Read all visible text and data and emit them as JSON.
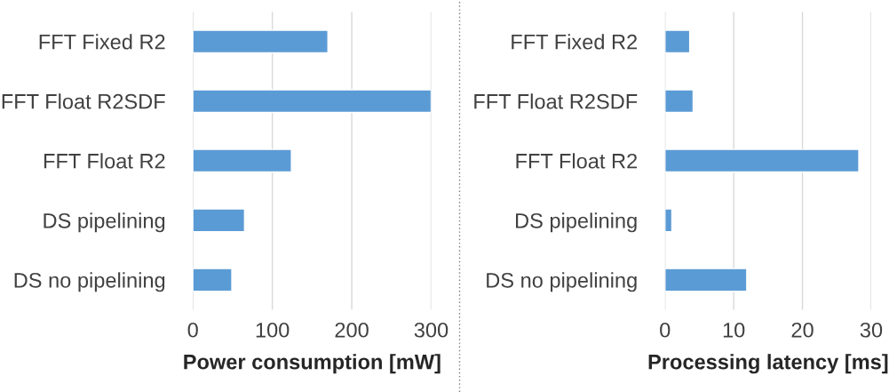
{
  "chart_data": [
    {
      "type": "bar",
      "orientation": "horizontal",
      "categories": [
        "FFT Fixed R2",
        "FFT Float R2SDF",
        "FFT Float R2",
        "DS pipelining",
        "DS no pipelining"
      ],
      "values": [
        170,
        300,
        124,
        65,
        49
      ],
      "color": "#5b9bd5",
      "xlabel": "Power consumption [mW]",
      "xlim": [
        0,
        300
      ],
      "xticks": [
        0,
        100,
        200,
        300
      ],
      "grid": "x",
      "legend": false
    },
    {
      "type": "bar",
      "orientation": "horizontal",
      "categories": [
        "FFT Fixed R2",
        "FFT Float R2SDF",
        "FFT Float R2",
        "DS pipelining",
        "DS no pipelining"
      ],
      "values": [
        3.6,
        4.1,
        28.2,
        1.0,
        11.9
      ],
      "color": "#5b9bd5",
      "xlabel": "Processing latency [ms]",
      "xlim": [
        0,
        30
      ],
      "xticks": [
        0,
        10,
        20,
        30
      ],
      "grid": "x",
      "legend": false
    }
  ]
}
